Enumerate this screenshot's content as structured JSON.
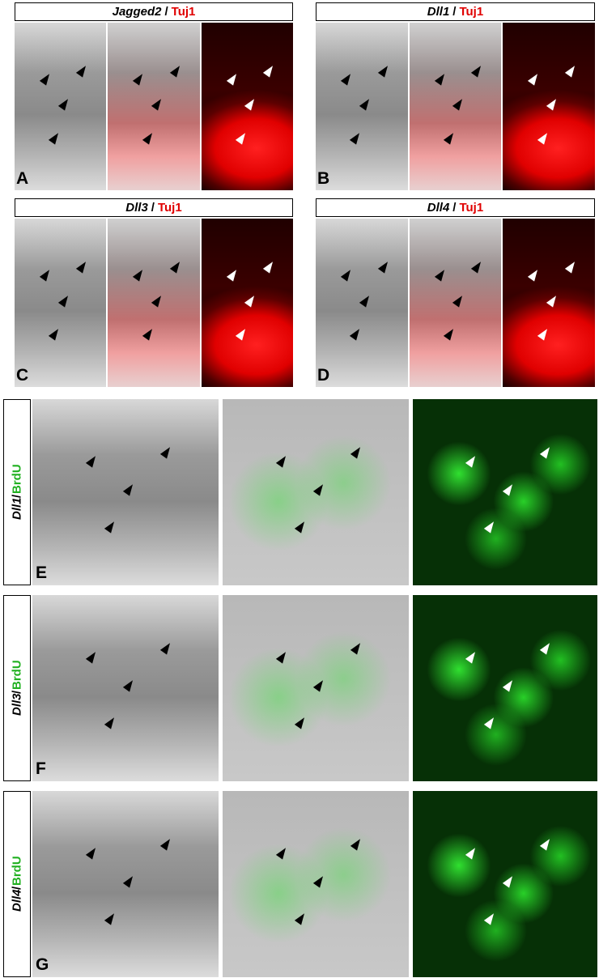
{
  "panels": [
    {
      "letter": "A",
      "gene": "Jagged2",
      "separator": "/",
      "marker": "Tuj1"
    },
    {
      "letter": "B",
      "gene": "Dll1",
      "separator": "/",
      "marker": "Tuj1"
    },
    {
      "letter": "C",
      "gene": "Dll3",
      "separator": "/",
      "marker": "Tuj1"
    },
    {
      "letter": "D",
      "gene": "Dll4",
      "separator": "/",
      "marker": "Tuj1"
    },
    {
      "letter": "E",
      "gene": "Dll1",
      "separator": "/",
      "marker": "BrdU"
    },
    {
      "letter": "F",
      "gene": "Dll3",
      "separator": "/",
      "marker": "BrdU"
    },
    {
      "letter": "G",
      "gene": "Dll4",
      "separator": "/",
      "marker": "BrdU"
    }
  ]
}
